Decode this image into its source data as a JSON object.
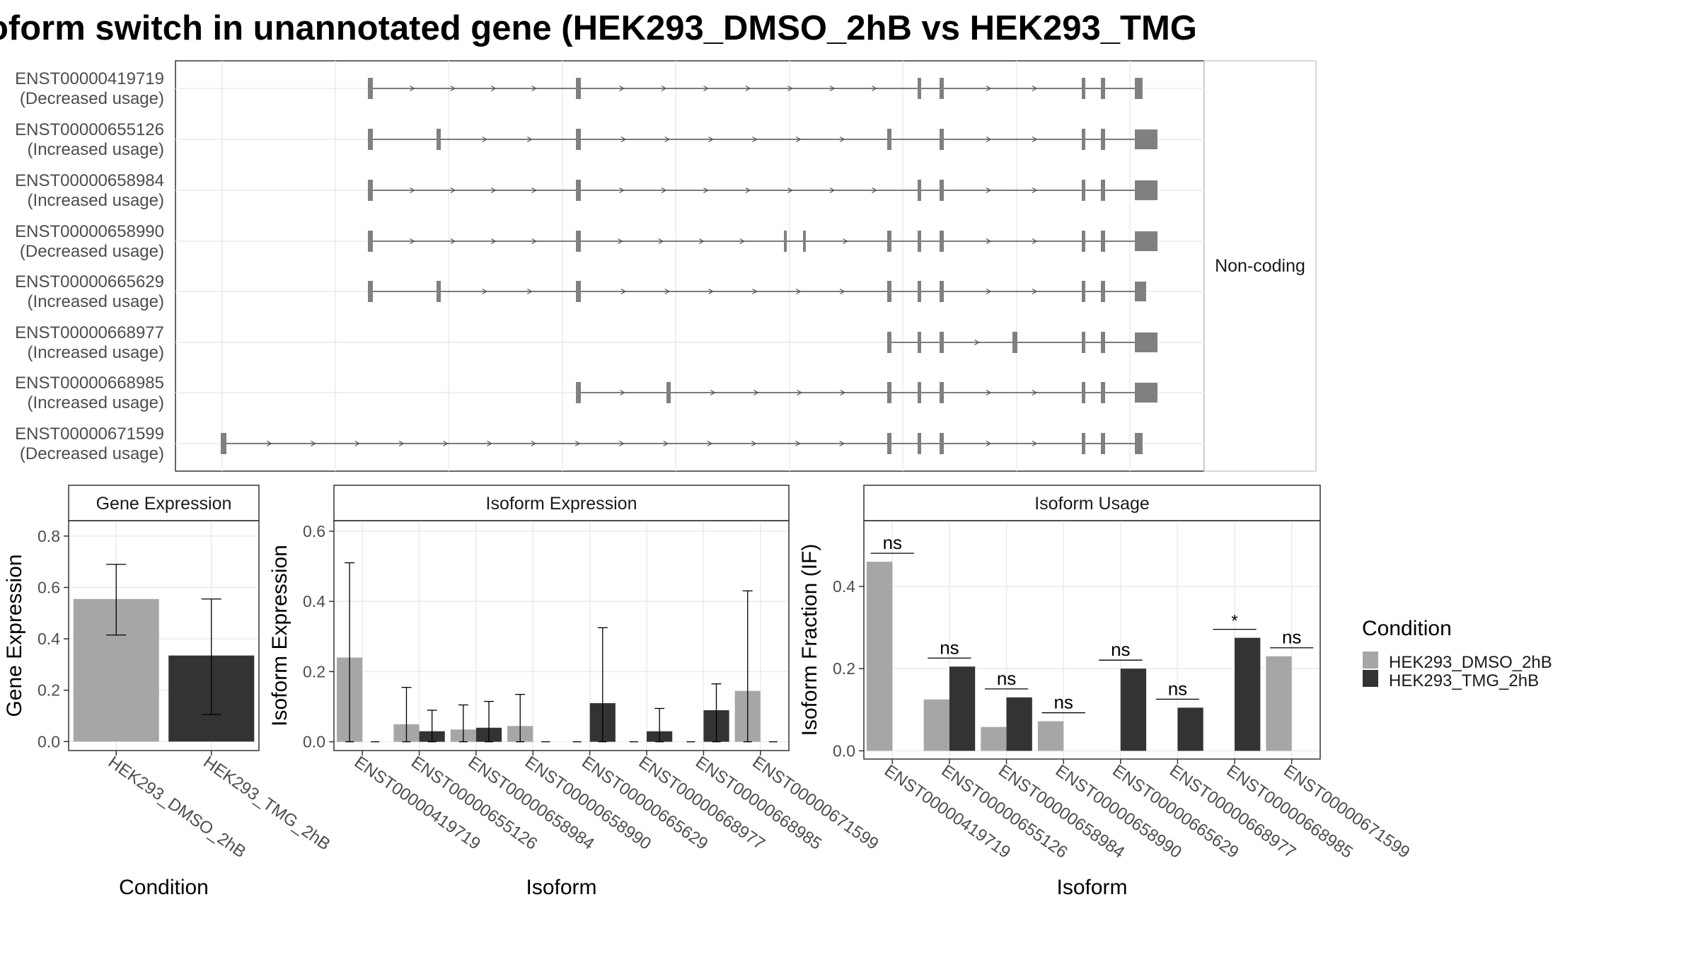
{
  "title": "oform switch in unannotated gene (HEK293_DMSO_2hB vs HEK293_TMG",
  "structure": {
    "facet_label": "Non-coding",
    "isoforms": [
      {
        "name": "ENST00000419719",
        "usage": "(Decreased usage)"
      },
      {
        "name": "ENST00000655126",
        "usage": "(Increased usage)"
      },
      {
        "name": "ENST00000658984",
        "usage": "(Increased usage)"
      },
      {
        "name": "ENST00000658990",
        "usage": "(Decreased usage)"
      },
      {
        "name": "ENST00000665629",
        "usage": "(Increased usage)"
      },
      {
        "name": "ENST00000668977",
        "usage": "(Increased usage)"
      },
      {
        "name": "ENST00000668985",
        "usage": "(Increased usage)"
      },
      {
        "name": "ENST00000671599",
        "usage": "(Decreased usage)"
      }
    ]
  },
  "colors": {
    "dmso": "#a6a6a6",
    "tmg": "#333333",
    "exon": "#808080",
    "intron": "#555555",
    "grid": "#ebebeb",
    "strip_bg": "#ffffff",
    "panel_border": "#333333"
  },
  "legend": {
    "title": "Condition",
    "items": [
      "HEK293_DMSO_2hB",
      "HEK293_TMG_2hB"
    ]
  },
  "chart_data": [
    {
      "type": "bar",
      "title": "Gene Expression",
      "xlabel": "Condition",
      "ylabel": "Gene Expression",
      "ylim": [
        -0.035,
        0.86
      ],
      "yticks": [
        "0.0",
        "0.2",
        "0.4",
        "0.6",
        "0.8"
      ],
      "categories": [
        "HEK293_DMSO_2hB",
        "HEK293_TMG_2hB"
      ],
      "values": [
        0.555,
        0.335
      ],
      "err_low": [
        0.415,
        0.105
      ],
      "err_high": [
        0.69,
        0.555
      ]
    },
    {
      "type": "bar",
      "title": "Isoform Expression",
      "xlabel": "Isoform",
      "ylabel": "Isoform Expression",
      "ylim": [
        -0.025,
        0.63
      ],
      "yticks": [
        "0.0",
        "0.2",
        "0.4",
        "0.6"
      ],
      "categories": [
        "ENST00000419719",
        "ENST00000655126",
        "ENST00000658984",
        "ENST00000658990",
        "ENST00000665629",
        "ENST00000668977",
        "ENST00000668985",
        "ENST00000671599"
      ],
      "series": [
        {
          "name": "HEK293_DMSO_2hB",
          "values": [
            0.24,
            0.05,
            0.035,
            0.045,
            0.0,
            0.0,
            0.0,
            0.145
          ],
          "err_low": [
            0.0,
            0.0,
            0.0,
            0.0,
            0.0,
            0.0,
            0.0,
            0.0
          ],
          "err_high": [
            0.51,
            0.155,
            0.105,
            0.135,
            0.0,
            0.0,
            0.0,
            0.43
          ]
        },
        {
          "name": "HEK293_TMG_2hB",
          "values": [
            0.0,
            0.03,
            0.04,
            0.0,
            0.11,
            0.03,
            0.09,
            0.0
          ],
          "err_low": [
            0.0,
            0.0,
            0.0,
            0.0,
            0.0,
            0.0,
            0.0,
            0.0
          ],
          "err_high": [
            0.0,
            0.09,
            0.115,
            0.0,
            0.325,
            0.095,
            0.165,
            0.0
          ]
        }
      ]
    },
    {
      "type": "bar",
      "title": "Isoform Usage",
      "xlabel": "Isoform",
      "ylabel": "Isoform Fraction (IF)",
      "ylim": [
        -0.02,
        0.56
      ],
      "yticks": [
        "0.0",
        "0.2",
        "0.4"
      ],
      "categories": [
        "ENST00000419719",
        "ENST00000655126",
        "ENST00000658984",
        "ENST00000658990",
        "ENST00000665629",
        "ENST00000668977",
        "ENST00000668985",
        "ENST00000671599"
      ],
      "series": [
        {
          "name": "HEK293_DMSO_2hB",
          "values": [
            0.46,
            0.125,
            0.058,
            0.072,
            0.0,
            0.0,
            0.0,
            0.23
          ]
        },
        {
          "name": "HEK293_TMG_2hB",
          "values": [
            0.0,
            0.205,
            0.13,
            0.0,
            0.2,
            0.105,
            0.275,
            0.0
          ]
        }
      ],
      "significance": [
        "ns",
        "ns",
        "ns",
        "ns",
        "ns",
        "ns",
        "*",
        "ns"
      ]
    }
  ]
}
